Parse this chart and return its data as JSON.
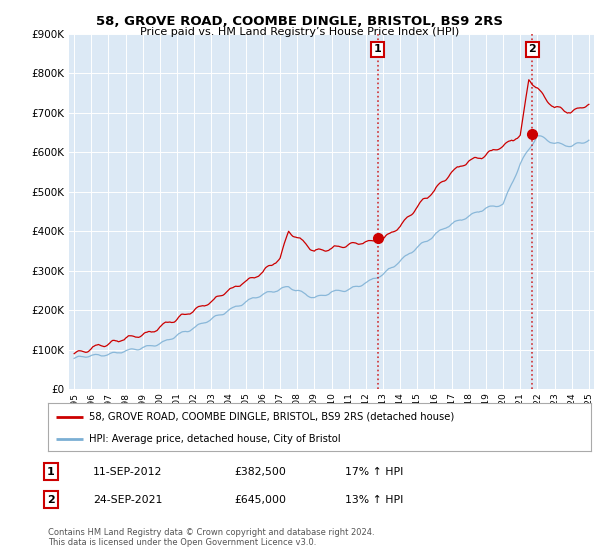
{
  "title": "58, GROVE ROAD, COOMBE DINGLE, BRISTOL, BS9 2RS",
  "subtitle": "Price paid vs. HM Land Registry’s House Price Index (HPI)",
  "legend_line1": "58, GROVE ROAD, COOMBE DINGLE, BRISTOL, BS9 2RS (detached house)",
  "legend_line2": "HPI: Average price, detached house, City of Bristol",
  "footnote": "Contains HM Land Registry data © Crown copyright and database right 2024.\nThis data is licensed under the Open Government Licence v3.0.",
  "annotation1_label": "1",
  "annotation1_date": "11-SEP-2012",
  "annotation1_price": "£382,500",
  "annotation1_hpi": "17% ↑ HPI",
  "annotation2_label": "2",
  "annotation2_date": "24-SEP-2021",
  "annotation2_price": "£645,000",
  "annotation2_hpi": "13% ↑ HPI",
  "sale1_year": 2012.7,
  "sale1_value": 382500,
  "sale2_year": 2021.7,
  "sale2_value": 645000,
  "ylim": [
    0,
    900000
  ],
  "yticks": [
    0,
    100000,
    200000,
    300000,
    400000,
    500000,
    600000,
    700000,
    800000,
    900000
  ],
  "hpi_color": "#7bafd4",
  "price_color": "#cc0000",
  "vline_color": "#cc0000",
  "background_color": "#ffffff",
  "plot_bg_color": "#dce9f5",
  "grid_color": "#ffffff"
}
